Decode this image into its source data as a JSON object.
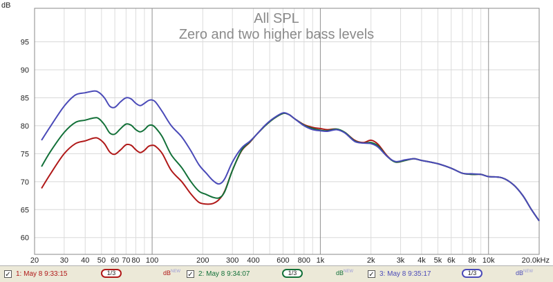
{
  "chart_data": {
    "type": "line",
    "title": "All SPL",
    "subtitle": "Zero and two higher bass levels",
    "ylabel": "dB",
    "x_unit_label": "kHz",
    "x_scale": "log",
    "xlim": [
      20,
      20000
    ],
    "ylim": [
      57,
      101
    ],
    "grid": true,
    "y_ticks": [
      60,
      65,
      70,
      75,
      80,
      85,
      90,
      95
    ],
    "x_ticks": [
      {
        "value": 20,
        "label": "20"
      },
      {
        "value": 30,
        "label": "30"
      },
      {
        "value": 40,
        "label": "40"
      },
      {
        "value": 50,
        "label": "50"
      },
      {
        "value": 60,
        "label": "60"
      },
      {
        "value": 70,
        "label": "70"
      },
      {
        "value": 80,
        "label": "80"
      },
      {
        "value": 100,
        "label": "100"
      },
      {
        "value": 200,
        "label": "200"
      },
      {
        "value": 300,
        "label": "300"
      },
      {
        "value": 400,
        "label": "400"
      },
      {
        "value": 600,
        "label": "600"
      },
      {
        "value": 800,
        "label": "800"
      },
      {
        "value": 1000,
        "label": "1k"
      },
      {
        "value": 2000,
        "label": "2k"
      },
      {
        "value": 3000,
        "label": "3k"
      },
      {
        "value": 4000,
        "label": "4k"
      },
      {
        "value": 5000,
        "label": "5k"
      },
      {
        "value": 6000,
        "label": "6k"
      },
      {
        "value": 8000,
        "label": "8k"
      },
      {
        "value": 10000,
        "label": "10k"
      },
      {
        "value": 20000,
        "label": "20.0kHz"
      }
    ],
    "series": [
      {
        "name": "1: May 8 9:33:15",
        "color": "#b01818",
        "points": [
          [
            22,
            68.8
          ],
          [
            25,
            71.5
          ],
          [
            30,
            75
          ],
          [
            35,
            76.8
          ],
          [
            40,
            77.3
          ],
          [
            45,
            77.8
          ],
          [
            48,
            77.7
          ],
          [
            52,
            76.8
          ],
          [
            56,
            75.3
          ],
          [
            60,
            74.9
          ],
          [
            65,
            75.7
          ],
          [
            70,
            76.6
          ],
          [
            75,
            76.5
          ],
          [
            80,
            75.7
          ],
          [
            85,
            75.2
          ],
          [
            90,
            75.6
          ],
          [
            95,
            76.3
          ],
          [
            100,
            76.5
          ],
          [
            105,
            76.3
          ],
          [
            115,
            75
          ],
          [
            130,
            72
          ],
          [
            150,
            70
          ],
          [
            170,
            67.8
          ],
          [
            190,
            66.3
          ],
          [
            210,
            66
          ],
          [
            230,
            66.1
          ],
          [
            250,
            66.8
          ],
          [
            270,
            68.3
          ],
          [
            300,
            72
          ],
          [
            340,
            75.5
          ],
          [
            380,
            77
          ],
          [
            420,
            78.5
          ],
          [
            470,
            80
          ],
          [
            530,
            81.3
          ],
          [
            600,
            82.2
          ],
          [
            650,
            82
          ],
          [
            700,
            81.3
          ],
          [
            800,
            80.2
          ],
          [
            900,
            79.7
          ],
          [
            1000,
            79.5
          ],
          [
            1100,
            79.3
          ],
          [
            1250,
            79.4
          ],
          [
            1400,
            78.8
          ],
          [
            1600,
            77.4
          ],
          [
            1800,
            77
          ],
          [
            2000,
            77.4
          ],
          [
            2200,
            76.7
          ],
          [
            2500,
            74.6
          ],
          [
            2800,
            73.5
          ],
          [
            3200,
            73.8
          ],
          [
            3600,
            74.1
          ],
          [
            4000,
            73.8
          ],
          [
            5000,
            73.2
          ],
          [
            6000,
            72.4
          ],
          [
            7000,
            71.5
          ],
          [
            8000,
            71.3
          ],
          [
            9000,
            71.3
          ],
          [
            10000,
            70.9
          ],
          [
            12000,
            70.7
          ],
          [
            14000,
            69.5
          ],
          [
            16000,
            67.5
          ],
          [
            18000,
            65
          ],
          [
            20000,
            63
          ]
        ]
      },
      {
        "name": "2: May 8 9:34:07",
        "color": "#127038",
        "points": [
          [
            22,
            72.7
          ],
          [
            25,
            75.5
          ],
          [
            30,
            78.8
          ],
          [
            35,
            80.6
          ],
          [
            40,
            81
          ],
          [
            45,
            81.4
          ],
          [
            48,
            81.3
          ],
          [
            52,
            80.2
          ],
          [
            56,
            78.7
          ],
          [
            60,
            78.5
          ],
          [
            65,
            79.5
          ],
          [
            70,
            80.3
          ],
          [
            75,
            80.1
          ],
          [
            80,
            79.3
          ],
          [
            85,
            78.9
          ],
          [
            90,
            79.3
          ],
          [
            95,
            80
          ],
          [
            100,
            80.1
          ],
          [
            105,
            79.6
          ],
          [
            115,
            78
          ],
          [
            130,
            74.8
          ],
          [
            150,
            72.5
          ],
          [
            170,
            70
          ],
          [
            190,
            68.3
          ],
          [
            210,
            67.7
          ],
          [
            230,
            67.2
          ],
          [
            250,
            67.1
          ],
          [
            270,
            68.2
          ],
          [
            300,
            72
          ],
          [
            340,
            75.6
          ],
          [
            380,
            77.1
          ],
          [
            420,
            78.5
          ],
          [
            470,
            80
          ],
          [
            530,
            81.3
          ],
          [
            600,
            82.2
          ],
          [
            650,
            82
          ],
          [
            700,
            81.3
          ],
          [
            800,
            80.1
          ],
          [
            900,
            79.5
          ],
          [
            1000,
            79.2
          ],
          [
            1100,
            79.1
          ],
          [
            1250,
            79.4
          ],
          [
            1400,
            78.8
          ],
          [
            1600,
            77.3
          ],
          [
            1800,
            76.9
          ],
          [
            2000,
            77
          ],
          [
            2200,
            76.4
          ],
          [
            2500,
            74.5
          ],
          [
            2800,
            73.5
          ],
          [
            3200,
            73.8
          ],
          [
            3600,
            74.1
          ],
          [
            4000,
            73.8
          ],
          [
            5000,
            73.2
          ],
          [
            6000,
            72.4
          ],
          [
            7000,
            71.5
          ],
          [
            8000,
            71.3
          ],
          [
            9000,
            71.3
          ],
          [
            10000,
            70.9
          ],
          [
            12000,
            70.7
          ],
          [
            14000,
            69.5
          ],
          [
            16000,
            67.5
          ],
          [
            18000,
            65
          ],
          [
            20000,
            63
          ]
        ]
      },
      {
        "name": "3: May 8 9:35:17",
        "color": "#4a4ab8",
        "points": [
          [
            22,
            77.4
          ],
          [
            25,
            80
          ],
          [
            30,
            83.5
          ],
          [
            35,
            85.5
          ],
          [
            40,
            85.9
          ],
          [
            45,
            86.2
          ],
          [
            48,
            86
          ],
          [
            52,
            85
          ],
          [
            56,
            83.5
          ],
          [
            60,
            83.3
          ],
          [
            65,
            84.3
          ],
          [
            70,
            85
          ],
          [
            75,
            84.8
          ],
          [
            80,
            84
          ],
          [
            85,
            83.6
          ],
          [
            90,
            84
          ],
          [
            95,
            84.5
          ],
          [
            100,
            84.6
          ],
          [
            105,
            84.2
          ],
          [
            115,
            82.5
          ],
          [
            130,
            80
          ],
          [
            150,
            78
          ],
          [
            170,
            75.5
          ],
          [
            190,
            73
          ],
          [
            210,
            71.5
          ],
          [
            230,
            70.2
          ],
          [
            250,
            69.6
          ],
          [
            270,
            70.5
          ],
          [
            300,
            73.5
          ],
          [
            340,
            76
          ],
          [
            380,
            77.2
          ],
          [
            420,
            78.5
          ],
          [
            470,
            80.1
          ],
          [
            530,
            81.4
          ],
          [
            600,
            82.3
          ],
          [
            650,
            82
          ],
          [
            700,
            81.3
          ],
          [
            800,
            80
          ],
          [
            900,
            79.3
          ],
          [
            1000,
            79.1
          ],
          [
            1100,
            79
          ],
          [
            1250,
            79.3
          ],
          [
            1400,
            78.7
          ],
          [
            1600,
            77.2
          ],
          [
            1800,
            76.9
          ],
          [
            2000,
            76.8
          ],
          [
            2200,
            76.2
          ],
          [
            2500,
            74.5
          ],
          [
            2800,
            73.6
          ],
          [
            3200,
            73.9
          ],
          [
            3600,
            74.1
          ],
          [
            4000,
            73.8
          ],
          [
            5000,
            73.2
          ],
          [
            6000,
            72.4
          ],
          [
            7000,
            71.5
          ],
          [
            8000,
            71.4
          ],
          [
            9000,
            71.3
          ],
          [
            10000,
            70.9
          ],
          [
            12000,
            70.7
          ],
          [
            14000,
            69.5
          ],
          [
            16000,
            67.5
          ],
          [
            18000,
            65
          ],
          [
            20000,
            63
          ]
        ]
      }
    ]
  },
  "legend": {
    "items": [
      {
        "check": "✓",
        "label": "1: May 8 9:33:15",
        "color": "#b01818",
        "smoothing": "1/3",
        "db_label": "dB",
        "db_sup": "NEW"
      },
      {
        "check": "✓",
        "label": "2: May 8 9:34:07",
        "color": "#127038",
        "smoothing": "1/3",
        "db_label": "dB",
        "db_sup": "NEW"
      },
      {
        "check": "✓",
        "label": "3: May 8 9:35:17",
        "color": "#4a4ab8",
        "smoothing": "1/3",
        "db_label": "dB",
        "db_sup": "NEW"
      }
    ]
  }
}
